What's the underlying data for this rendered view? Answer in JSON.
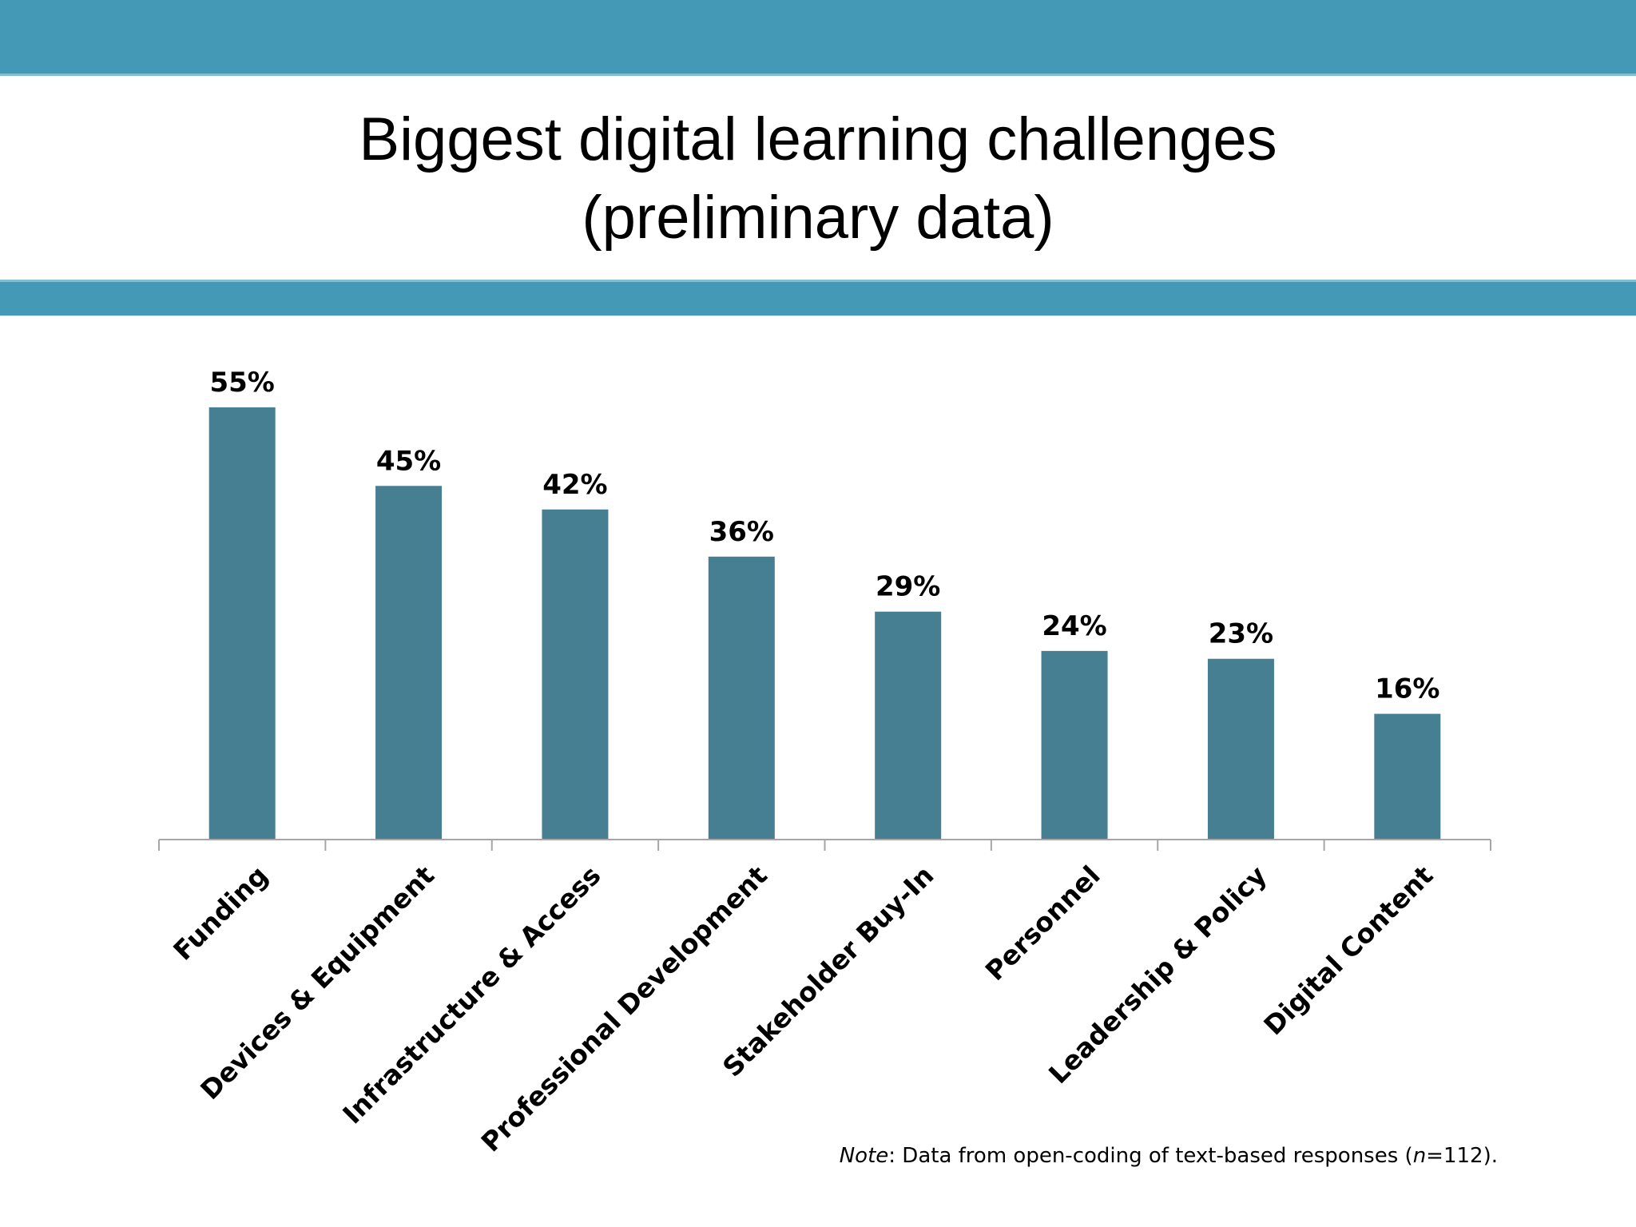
{
  "title": {
    "line1": "Biggest digital learning challenges",
    "line2": "(preliminary data)"
  },
  "colors": {
    "band": "#4499b6",
    "bar": "#467f91",
    "axis": "#a6a6a6"
  },
  "chart_data": {
    "type": "bar",
    "categories": [
      "Funding",
      "Devices & Equipment",
      "Infrastructure & Access",
      "Professional Development",
      "Stakeholder Buy-In",
      "Personnel",
      "Leadership & Policy",
      "Digital Content"
    ],
    "values": [
      55,
      45,
      42,
      36,
      29,
      24,
      23,
      16
    ],
    "data_labels": [
      "55%",
      "45%",
      "42%",
      "36%",
      "29%",
      "24%",
      "23%",
      "16%"
    ],
    "unit": "%",
    "ylim": [
      0,
      62
    ],
    "grid": false,
    "legend": "none"
  },
  "note": {
    "label": "Note",
    "text_before_n": ": Data from open-coding of text-based responses (",
    "n_symbol": "n",
    "text_after_n": "=112)."
  }
}
